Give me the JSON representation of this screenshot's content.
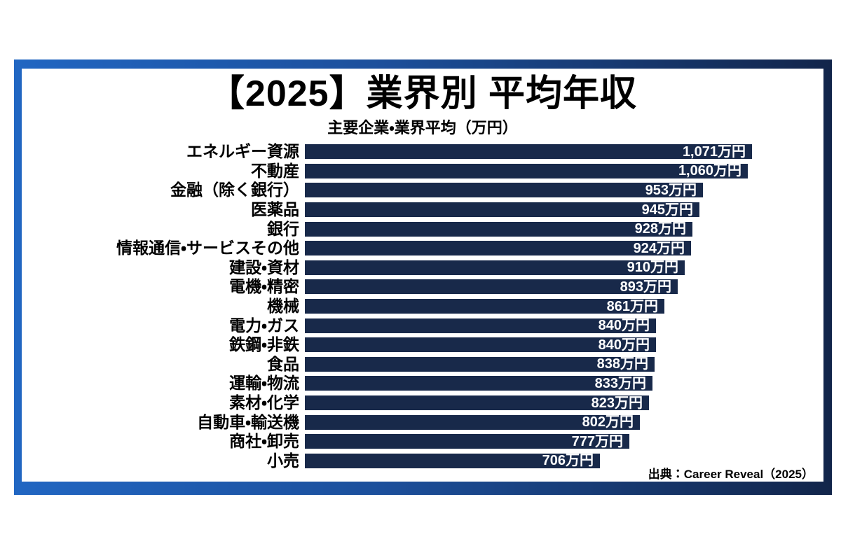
{
  "page": {
    "title": "【2025】業界別 平均年収",
    "subtitle": "主要企業・業界平均（万円）",
    "source": "出典：Career Reveal（2025）"
  },
  "colors": {
    "frame_gradient_start": "#2166c2",
    "frame_gradient_end": "#12254a",
    "bar": "#18294a",
    "value_text": "#ffffff",
    "label_text": "#000000",
    "background": "#ffffff"
  },
  "chart_data": {
    "type": "bar",
    "orientation": "horizontal",
    "title": "【2025】業界別 平均年収",
    "subtitle": "主要企業・業界平均（万円）",
    "unit": "万円",
    "xlim": [
      0,
      1120
    ],
    "grid": false,
    "legend": "none",
    "categories": [
      "エネルギー資源",
      "不動産",
      "金融（除く銀行）",
      "医薬品",
      "銀行",
      "情報通信・サービスその他",
      "建設・資材",
      "電機・精密",
      "機械",
      "電力・ガス",
      "鉄鋼・非鉄",
      "食品",
      "運輸・物流",
      "素材・化学",
      "自動車・輸送機",
      "商社・卸売",
      "小売"
    ],
    "values": [
      1071,
      1060,
      953,
      945,
      928,
      924,
      910,
      893,
      861,
      840,
      840,
      838,
      833,
      823,
      802,
      777,
      706
    ],
    "value_labels": [
      "1,071万円",
      "1,060万円",
      "953万円",
      "945万円",
      "928万円",
      "924万円",
      "910万円",
      "893万円",
      "861万円",
      "840万円",
      "840万円",
      "838万円",
      "833万円",
      "823万円",
      "802万円",
      "777万円",
      "706万円"
    ],
    "source": "出典：Career Reveal（2025）"
  }
}
